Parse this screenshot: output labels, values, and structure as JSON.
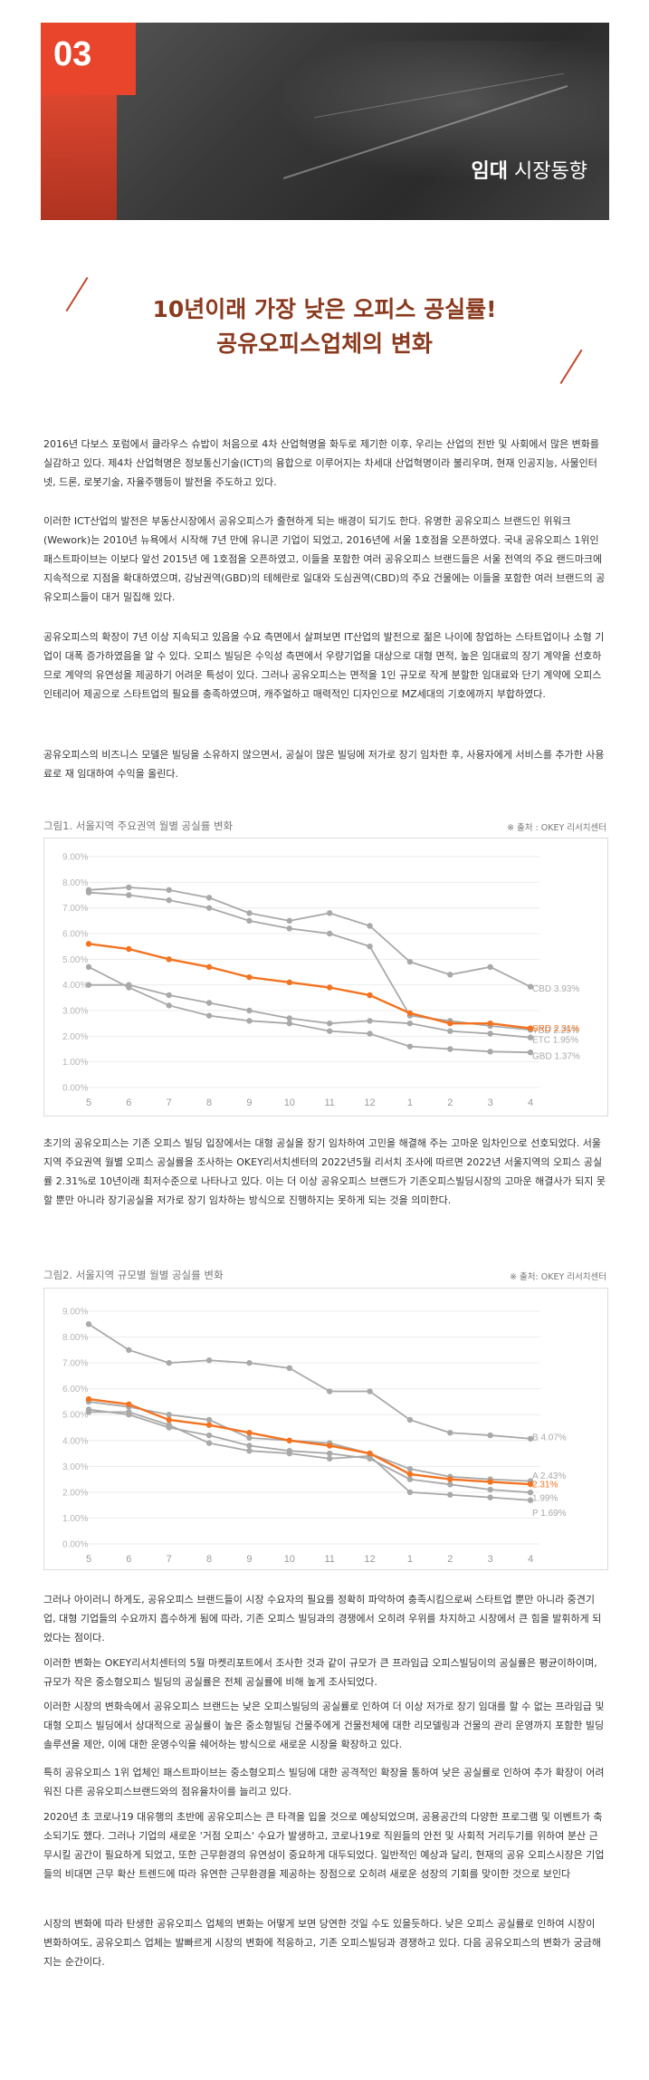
{
  "banner": {
    "number": "03",
    "title_bold": "임대",
    "title_rest": "시장동향"
  },
  "headline": {
    "line1": "10년이래 가장 낮은 오피스 공실률!",
    "line2": "공유오피스업체의 변화"
  },
  "paragraphs": [
    "2016년 다보스 포럼에서 클라우스 슈밥이 처음으로 4차 산업혁명을 화두로 제기한 이후, 우리는 산업의 전반 및 사회에서 많은 변화를 실감하고 있다. 제4차 산업혁명은 정보통신기술(ICT)의 융합으로 이루어지는 차세대 산업혁명이라 불리우며, 현재 인공지능, 사물인터넷, 드론, 로봇기술, 자율주행등이 발전을 주도하고 있다.",
    "이러한 ICT산업의 발전은 부동산시장에서 공유오피스가 출현하게 되는 배경이 되기도 한다. 유명한 공유오피스 브랜드인 위워크(Wework)는 2010년 뉴욕에서 시작해 7년 만에 유니콘 기업이 되었고, 2016년에 서울 1호점을 오픈하였다. 국내 공유오피스 1위인 패스트파이브는 이보다 앞선 2015년 에 1호점을 오픈하였고, 이들을 포함한 여러 공유오피스 브랜드들은 서울 전역의 주요 랜드마크에 지속적으로 지점을 확대하였으며, 강남권역(GBD)의 테헤란로 일대와 도심권역(CBD)의 주요 건물에는 이들을 포함한 여러 브랜드의 공유오피스들이 대거 밀집해 있다.",
    "공유오피스의 확장이 7년 이상 지속되고 있음을 수요 측면에서 살펴보면 IT산업의 발전으로 젊은 나이에 창업하는 스타트업이나 소형 기업이 대폭 증가하였음을 알 수 있다. 오피스 빌딩은 수익성 측면에서 우량기업을 대상으로 대형 면적, 높은 임대료의 장기 계약을 선호하므로 계약의 유연성을 제공하기 어려운 특성이 있다. 그러나 공유오피스는 면적을 1인 규모로 작게 분할한 임대료와 단기 계약에 오피스 인테리어 제공으로 스타트업의 필요를 충족하였으며, 캐주얼하고 매력적인 디자인으로 MZ세대의 기호에까지 부합하였다.",
    "공유오피스의 비즈니스 모델은 빌딩을 소유하지 않으면서, 공실이 많은 빌딩에 저가로 장기 임차한 후, 사용자에게 서비스를 추가한 사용료로 재 임대하여 수익을 올린다.",
    "초기의 공유오피스는 기존 오피스 빌딩 입장에서는 대형 공실을 장기 임차하여 고민을 해결해 주는 고마운 임차인으로 선호되었다. 서울지역 주요권역 월별 오피스 공실률을 조사하는 OKEY리서치센터의 2022년5월 리서치 조사에 따르면 2022년 서울지역의 오피스 공실률 2.31%로 10년이래 최저수준으로 나타나고 있다. 이는 더 이상 공유오피스 브랜드가 기존오피스빌딩시장의 고마운 해결사가 되지 못할 뿐만 아니라 장기공실을 저가로 장기 임차하는 방식으로 진행하지는 못하게 되는 것을 의미한다.",
    "그러나 아이러니 하게도, 공유오피스 브랜드들이 시장 수요자의 필요를 정확히 파악하여 충족시킴으로써 스타트업 뿐만 아니라 중견기업, 대형 기업들의 수요까지 흡수하게 됨에 따라, 기존 오피스 빌딩과의 경쟁에서 오히려 우위를 차지하고 시장에서 큰 힘을 발휘하게 되었다는 점이다.",
    "이러한 변화는 OKEY리서치센터의 5월 마켓리포트에서 조사한 것과 같이 규모가 큰 프라임급 오피스빌딩이의 공실률은 평균이하이며, 규모가 작은 중소형오피스 빌딩의 공실률은 전체 공실률에 비해 높게 조사되었다.",
    "이러한 시장의 변화속에서 공유오피스 브랜드는 낮은 오피스빌딩의 공실률로 인하여 더 이상 저가로 장기 임대를 할 수 없는 프라임급 및 대형 오피스 빌딩에서 상대적으로 공실률이 높은 중소형빌딩 건물주에게 건물전체에 대한 리모델링과 건물의 관리 운영까지 포함한 빌딩솔루션을 제안, 이에 대한 운영수익을 쉐어하는 방식으로 새로운 시장을 확장하고 있다.",
    "특히 공유오피스 1위 업체인 패스트파이브는 중소형오피스 빌딩에 대한 공격적인 확장을 통하여 낮은 공실률로 인하여 추가 확장이 어려워진 다른 공유오피스브랜드와의 점유율차이를 늘리고 있다.",
    "2020년 초 코로나19 대유행의 초반에 공유오피스는 큰 타격을 입을 것으로 예상되었으며, 공용공간의 다양한 프로그램 및 이벤트가 축소되기도 했다. 그러나 기업의 새로운 '거점 오피스' 수요가 발생하고, 코로나19로 직원들의 안전 및 사회적 거리두기를 위하여 분산 근무시킬 공간이 필요하게 되었고, 또한 근무환경의 유연성이 중요하게 대두되었다. 일반적인 예상과 달리, 현재의 공유 오피스시장은 기업들의 비대면 근무 확산 트렌드에 따라 유연한 근무환경을 제공하는 장점으로 오히려 새로운 성장의 기회를 맞이한 것으로 보인다",
    "시장의 변화에 따라 탄생한 공유오피스 업체의 변화는 어떻게 보면 당연한 것일 수도 있을듯하다. 낮은 오피스 공실률로 인하여 시장이 변화하여도, 공유오피스 업체는 발빠르게 시장의 변화에 적응하고, 기존 오피스빌딩과 경쟁하고 있다. 다음 공유오피스의 변화가 궁금해 지는 순간이다."
  ],
  "chart1": {
    "title": "그림1. 서울지역 주요권역 월별 공실률 변화",
    "source": "※ 출처 : OKEY 리서치센터"
  },
  "chart2": {
    "title": "그림2. 서울지역 규모별 월별 공실률 변화",
    "source": "※ 출처: OKEY 리서치센터"
  },
  "colors": {
    "accent": "#e8452c",
    "highlight_series": "#f37321",
    "gray_series": "#a9a9a9",
    "headline": "#8a3a1e"
  },
  "chart_data": [
    {
      "type": "line",
      "categories": [
        "5",
        "6",
        "7",
        "8",
        "9",
        "10",
        "11",
        "12",
        "1",
        "2",
        "3",
        "4"
      ],
      "ylim": [
        0,
        9
      ],
      "yticks": [
        "0.00%",
        "1.00%",
        "2.00%",
        "3.00%",
        "4.00%",
        "5.00%",
        "6.00%",
        "7.00%",
        "8.00%",
        "9.00%"
      ],
      "series": [
        {
          "name": "CBD",
          "values": [
            7.7,
            7.8,
            7.7,
            7.4,
            6.8,
            6.5,
            6.8,
            6.3,
            4.9,
            4.4,
            4.7,
            3.93
          ],
          "end_label": "CBD 3.93%",
          "highlight": false
        },
        {
          "name": "SRD",
          "values": [
            5.6,
            5.4,
            5.0,
            4.7,
            4.3,
            4.1,
            3.9,
            3.6,
            2.9,
            2.5,
            2.5,
            2.31
          ],
          "end_label": "SRD 2.31%",
          "highlight": true
        },
        {
          "name": "YBD",
          "values": [
            7.6,
            7.5,
            7.3,
            7.0,
            6.5,
            6.2,
            6.0,
            5.5,
            2.8,
            2.6,
            2.4,
            2.25
          ],
          "end_label": "YBD 2.25%",
          "highlight": false
        },
        {
          "name": "ETC",
          "values": [
            4.0,
            4.0,
            3.6,
            3.3,
            3.0,
            2.7,
            2.5,
            2.6,
            2.5,
            2.2,
            2.1,
            1.95
          ],
          "end_label": "ETC 1.95%",
          "highlight": false
        },
        {
          "name": "GBD",
          "values": [
            4.7,
            3.9,
            3.2,
            2.8,
            2.6,
            2.5,
            2.2,
            2.1,
            1.6,
            1.5,
            1.4,
            1.37
          ],
          "end_label": "GBD 1.37%",
          "highlight": false
        }
      ]
    },
    {
      "type": "line",
      "categories": [
        "5",
        "6",
        "7",
        "8",
        "9",
        "10",
        "11",
        "12",
        "1",
        "2",
        "3",
        "4"
      ],
      "ylim": [
        0,
        9
      ],
      "yticks": [
        "0.00%",
        "1.00%",
        "2.00%",
        "3.00%",
        "4.00%",
        "5.00%",
        "6.00%",
        "7.00%",
        "8.00%",
        "9.00%"
      ],
      "series": [
        {
          "name": "B",
          "values": [
            8.5,
            7.5,
            7.0,
            7.1,
            7.0,
            6.8,
            5.9,
            5.9,
            4.8,
            4.3,
            4.2,
            4.07
          ],
          "end_label": "B 4.07%",
          "highlight": false
        },
        {
          "name": "A",
          "values": [
            5.5,
            5.3,
            5.0,
            4.8,
            4.1,
            4.0,
            3.9,
            3.5,
            2.9,
            2.6,
            2.5,
            2.43
          ],
          "end_label": "A 2.43%",
          "highlight": false
        },
        {
          "name": "",
          "values": [
            5.6,
            5.4,
            4.8,
            4.6,
            4.3,
            4.0,
            3.8,
            3.5,
            2.7,
            2.5,
            2.4,
            2.31
          ],
          "end_label": "2.31%",
          "highlight": true
        },
        {
          "name": "",
          "values": [
            5.2,
            5.0,
            4.5,
            4.2,
            3.8,
            3.6,
            3.5,
            3.3,
            2.5,
            2.3,
            2.1,
            1.99
          ],
          "end_label": "1.99%",
          "highlight": false
        },
        {
          "name": "P",
          "values": [
            5.1,
            5.1,
            4.6,
            3.9,
            3.6,
            3.5,
            3.3,
            3.4,
            2.0,
            1.9,
            1.8,
            1.69
          ],
          "end_label": "P 1.69%",
          "highlight": false
        }
      ]
    }
  ]
}
